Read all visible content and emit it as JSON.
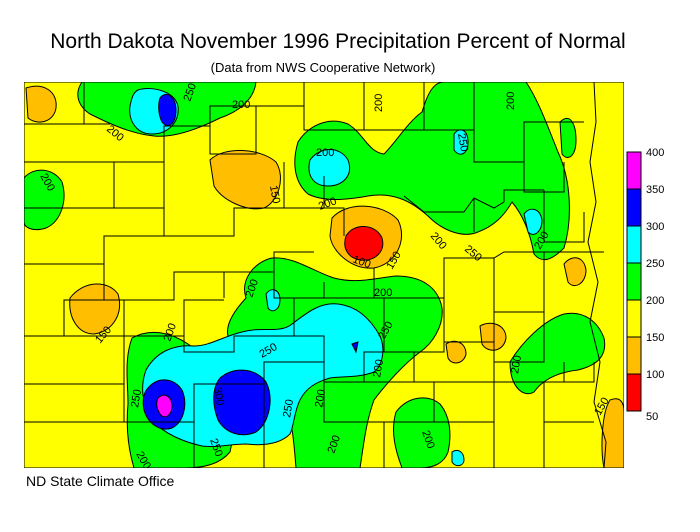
{
  "title": "North Dakota November 1996 Precipitation Percent of Normal",
  "subtitle": "(Data from NWS Cooperative Network)",
  "credit": "ND State Climate Office",
  "legend": {
    "ticks": [
      "400",
      "350",
      "300",
      "250",
      "200",
      "150",
      "100",
      "50"
    ],
    "colors": [
      "#ff00ff",
      "#0000ff",
      "#00ffff",
      "#00ff00",
      "#ffff00",
      "#ffbf00",
      "#ff0000"
    ]
  },
  "contour_labels": [
    "250",
    "200",
    "200",
    "200",
    "200",
    "200",
    "200",
    "250",
    "200",
    "200",
    "150",
    "200",
    "200",
    "150",
    "100",
    "150",
    "200",
    "200",
    "200",
    "250",
    "250",
    "200",
    "200",
    "250",
    "250",
    "300",
    "250",
    "250",
    "200",
    "200",
    "200",
    "150"
  ],
  "colors": {
    "yellow": "#ffff00",
    "orange": "#ffbf00",
    "green": "#00ff00",
    "cyan": "#00ffff",
    "blue": "#0000ff",
    "red": "#ff0000",
    "magenta": "#ff00ff"
  }
}
